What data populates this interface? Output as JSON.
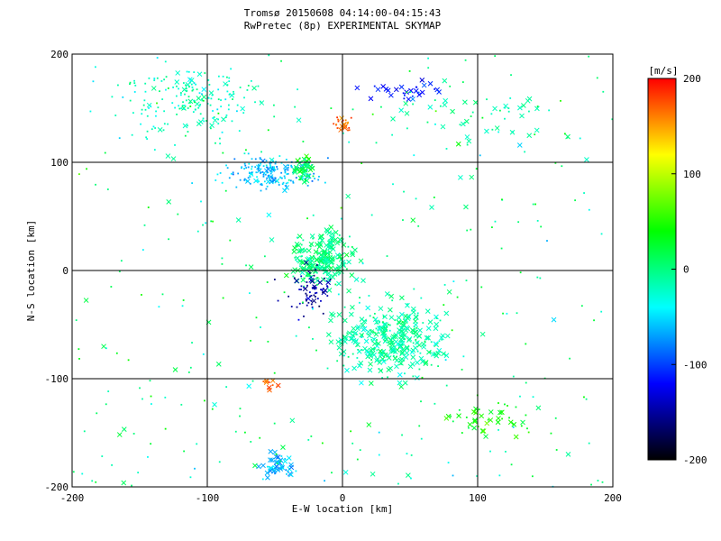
{
  "chart_data": {
    "type": "scatter",
    "title": "Tromsø 20150608 04:14:00-04:15:43",
    "subtitle": "RwPretec (8p) EXPERIMENTAL SKYMAP",
    "xlabel": "E-W location [km]",
    "ylabel": "N-S location [km]",
    "xlim": [
      -200,
      200
    ],
    "ylim": [
      -200,
      200
    ],
    "xticks": [
      "-200",
      "-100",
      "0",
      "100",
      "200"
    ],
    "yticks": [
      "-200",
      "-100",
      "0",
      "100",
      "200"
    ],
    "grid": true,
    "marker_types": [
      "x",
      "dot"
    ],
    "colorbar": {
      "label": "[m/s]",
      "range": [
        -200,
        200
      ],
      "ticks": [
        "200",
        "100",
        "0",
        "-100",
        "-200"
      ],
      "colormap": [
        "#000000",
        "#0000ff",
        "#00ffff",
        "#00ff00",
        "#ffff00",
        "#ff0000"
      ]
    },
    "clusters": [
      {
        "region": "north-west",
        "x_range": [
          -190,
          -40
        ],
        "y_range": [
          110,
          200
        ],
        "velocity": -20,
        "marker": "dot",
        "count": 180
      },
      {
        "region": "north-center",
        "x_range": [
          -90,
          -10
        ],
        "y_range": [
          70,
          110
        ],
        "velocity": -60,
        "marker": "dot",
        "count": 180
      },
      {
        "region": "north-center-green",
        "x_range": [
          -40,
          -20
        ],
        "y_range": [
          80,
          110
        ],
        "velocity": 20,
        "marker": "x",
        "count": 40
      },
      {
        "region": "north-red",
        "x_range": [
          -10,
          10
        ],
        "y_range": [
          125,
          145
        ],
        "velocity": 170,
        "marker": "dot",
        "count": 25
      },
      {
        "region": "north-east-blue",
        "x_range": [
          10,
          80
        ],
        "y_range": [
          150,
          180
        ],
        "velocity": -110,
        "marker": "x",
        "count": 30
      },
      {
        "region": "north-east-scatter",
        "x_range": [
          30,
          170
        ],
        "y_range": [
          110,
          170
        ],
        "velocity": -10,
        "marker": "x",
        "count": 40
      },
      {
        "region": "center",
        "x_range": [
          -50,
          20
        ],
        "y_range": [
          -20,
          40
        ],
        "velocity": 0,
        "marker": "x",
        "count": 220
      },
      {
        "region": "center-dark",
        "x_range": [
          -50,
          0
        ],
        "y_range": [
          -50,
          10
        ],
        "velocity": -150,
        "marker": "dot",
        "count": 70
      },
      {
        "region": "south-center",
        "x_range": [
          -20,
          90
        ],
        "y_range": [
          -110,
          -20
        ],
        "velocity": -10,
        "marker": "x",
        "count": 320
      },
      {
        "region": "south-east-green",
        "x_range": [
          60,
          160
        ],
        "y_range": [
          -160,
          -110
        ],
        "velocity": 40,
        "marker": "x",
        "count": 40
      },
      {
        "region": "south-red",
        "x_range": [
          -65,
          -45
        ],
        "y_range": [
          -115,
          -100
        ],
        "velocity": 170,
        "marker": "x",
        "count": 10
      },
      {
        "region": "south-cyan",
        "x_range": [
          -65,
          -30
        ],
        "y_range": [
          -195,
          -165
        ],
        "velocity": -60,
        "marker": "x",
        "count": 45
      },
      {
        "region": "background",
        "x_range": [
          -200,
          200
        ],
        "y_range": [
          -200,
          200
        ],
        "velocity": 0,
        "marker": "dot",
        "count": 350
      }
    ]
  }
}
